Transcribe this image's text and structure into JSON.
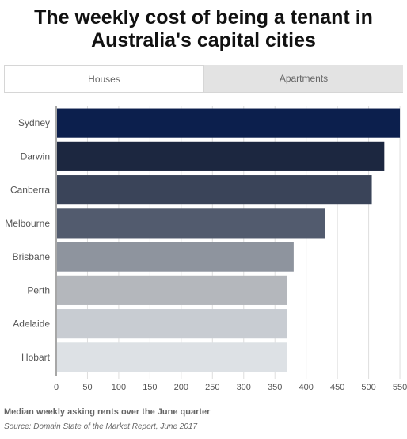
{
  "header": {
    "title_line1": "The weekly cost of being a tenant in",
    "title_line2": "Australia's capital cities"
  },
  "tabs": [
    {
      "label": "Houses",
      "active": true
    },
    {
      "label": "Apartments",
      "active": false
    }
  ],
  "footer": {
    "note": "Median weekly asking rents over the June quarter",
    "source": "Source: Domain State of the Market Report, June 2017"
  },
  "chart_data": {
    "type": "bar",
    "orientation": "horizontal",
    "categories": [
      "Sydney",
      "Darwin",
      "Canberra",
      "Melbourne",
      "Brisbane",
      "Perth",
      "Adelaide",
      "Hobart"
    ],
    "values": [
      550,
      525,
      505,
      430,
      380,
      370,
      370,
      370
    ],
    "colors": [
      "#0c1f4d",
      "#1c2740",
      "#3a4459",
      "#525b6e",
      "#8e949e",
      "#b4b7bc",
      "#c8ccd2",
      "#dde1e5"
    ],
    "xticks": [
      0,
      50,
      100,
      150,
      200,
      250,
      300,
      350,
      400,
      450,
      500,
      550
    ],
    "xlim": [
      0,
      555
    ],
    "grid": true
  }
}
